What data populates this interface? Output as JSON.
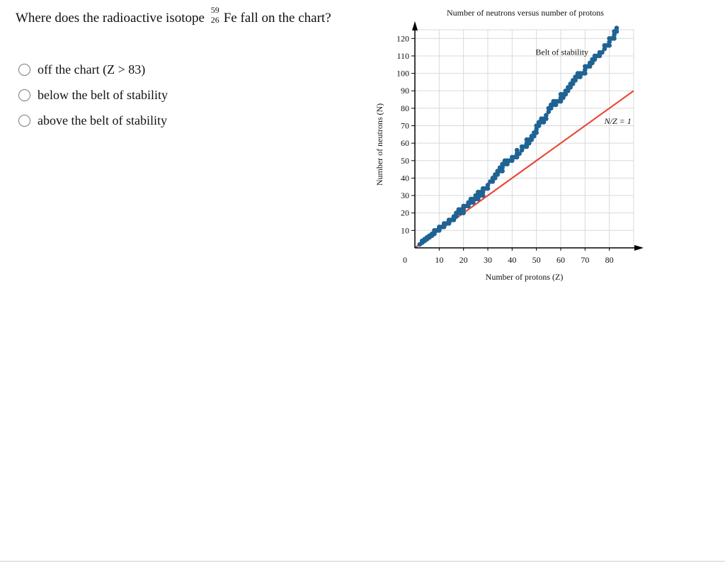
{
  "question": {
    "prefix": "Where does the radioactive isotope ",
    "isotope_mass": "59",
    "isotope_z": "26",
    "isotope_symbol": "Fe",
    "suffix": " fall on the chart?"
  },
  "options": [
    {
      "label": "off the chart (Z > 83)"
    },
    {
      "label": "below the belt of stability"
    },
    {
      "label": "above the belt of stability"
    }
  ],
  "colors": {
    "belt": "#1f6394",
    "ratio_line": "#e8483a",
    "grid": "#d9d9d9",
    "axis": "#000000"
  },
  "chart_data": {
    "type": "scatter",
    "title": "Number of neutrons versus number of protons",
    "xlabel": "Number of protons (Z)",
    "ylabel": "Number of neutrons (N)",
    "xlim": [
      0,
      90
    ],
    "ylim": [
      0,
      125
    ],
    "xticks": [
      10,
      20,
      30,
      40,
      50,
      60,
      70,
      80
    ],
    "yticks": [
      10,
      20,
      30,
      40,
      50,
      60,
      70,
      80,
      90,
      100,
      110,
      120
    ],
    "origin_label": "0",
    "grid": true,
    "annotations": [
      {
        "text": "Belt of stability"
      },
      {
        "text": "N/Z = 1"
      }
    ],
    "line": {
      "name": "N/Z = 1",
      "x": [
        0,
        90
      ],
      "y": [
        0,
        90
      ]
    },
    "belt_points": [
      [
        2,
        2
      ],
      [
        3,
        3
      ],
      [
        3,
        4
      ],
      [
        4,
        4
      ],
      [
        4,
        5
      ],
      [
        5,
        5
      ],
      [
        5,
        6
      ],
      [
        6,
        6
      ],
      [
        6,
        7
      ],
      [
        7,
        7
      ],
      [
        7,
        8
      ],
      [
        8,
        8
      ],
      [
        8,
        9
      ],
      [
        8,
        10
      ],
      [
        9,
        10
      ],
      [
        10,
        10
      ],
      [
        10,
        11
      ],
      [
        10,
        12
      ],
      [
        11,
        12
      ],
      [
        12,
        12
      ],
      [
        12,
        13
      ],
      [
        12,
        14
      ],
      [
        13,
        14
      ],
      [
        14,
        14
      ],
      [
        14,
        15
      ],
      [
        14,
        16
      ],
      [
        15,
        16
      ],
      [
        16,
        16
      ],
      [
        16,
        17
      ],
      [
        16,
        18
      ],
      [
        17,
        18
      ],
      [
        17,
        20
      ],
      [
        18,
        20
      ],
      [
        18,
        22
      ],
      [
        19,
        20
      ],
      [
        19,
        22
      ],
      [
        20,
        20
      ],
      [
        20,
        22
      ],
      [
        20,
        24
      ],
      [
        21,
        24
      ],
      [
        22,
        24
      ],
      [
        22,
        26
      ],
      [
        23,
        26
      ],
      [
        23,
        28
      ],
      [
        24,
        26
      ],
      [
        24,
        28
      ],
      [
        25,
        28
      ],
      [
        25,
        30
      ],
      [
        26,
        28
      ],
      [
        26,
        30
      ],
      [
        26,
        32
      ],
      [
        27,
        30
      ],
      [
        27,
        32
      ],
      [
        28,
        30
      ],
      [
        28,
        32
      ],
      [
        28,
        34
      ],
      [
        29,
        34
      ],
      [
        30,
        34
      ],
      [
        30,
        36
      ],
      [
        31,
        38
      ],
      [
        32,
        38
      ],
      [
        32,
        40
      ],
      [
        33,
        40
      ],
      [
        33,
        42
      ],
      [
        34,
        42
      ],
      [
        34,
        44
      ],
      [
        35,
        44
      ],
      [
        35,
        46
      ],
      [
        36,
        44
      ],
      [
        36,
        46
      ],
      [
        36,
        48
      ],
      [
        37,
        48
      ],
      [
        37,
        50
      ],
      [
        38,
        48
      ],
      [
        38,
        50
      ],
      [
        39,
        50
      ],
      [
        40,
        50
      ],
      [
        40,
        52
      ],
      [
        41,
        52
      ],
      [
        42,
        52
      ],
      [
        42,
        54
      ],
      [
        42,
        56
      ],
      [
        43,
        54
      ],
      [
        44,
        56
      ],
      [
        44,
        58
      ],
      [
        45,
        58
      ],
      [
        46,
        58
      ],
      [
        46,
        60
      ],
      [
        46,
        62
      ],
      [
        47,
        60
      ],
      [
        47,
        62
      ],
      [
        48,
        62
      ],
      [
        48,
        64
      ],
      [
        49,
        64
      ],
      [
        49,
        66
      ],
      [
        50,
        66
      ],
      [
        50,
        68
      ],
      [
        50,
        70
      ],
      [
        51,
        70
      ],
      [
        51,
        72
      ],
      [
        52,
        72
      ],
      [
        52,
        74
      ],
      [
        53,
        72
      ],
      [
        53,
        74
      ],
      [
        54,
        74
      ],
      [
        54,
        76
      ],
      [
        55,
        78
      ],
      [
        55,
        80
      ],
      [
        56,
        80
      ],
      [
        56,
        82
      ],
      [
        57,
        82
      ],
      [
        57,
        84
      ],
      [
        58,
        82
      ],
      [
        58,
        84
      ],
      [
        59,
        84
      ],
      [
        60,
        84
      ],
      [
        60,
        86
      ],
      [
        60,
        88
      ],
      [
        61,
        86
      ],
      [
        61,
        88
      ],
      [
        62,
        88
      ],
      [
        62,
        90
      ],
      [
        63,
        90
      ],
      [
        63,
        92
      ],
      [
        64,
        92
      ],
      [
        64,
        94
      ],
      [
        65,
        94
      ],
      [
        65,
        96
      ],
      [
        66,
        96
      ],
      [
        66,
        98
      ],
      [
        67,
        98
      ],
      [
        67,
        100
      ],
      [
        68,
        98
      ],
      [
        68,
        100
      ],
      [
        69,
        100
      ],
      [
        70,
        100
      ],
      [
        70,
        102
      ],
      [
        70,
        104
      ],
      [
        71,
        104
      ],
      [
        72,
        104
      ],
      [
        72,
        106
      ],
      [
        73,
        106
      ],
      [
        73,
        108
      ],
      [
        74,
        108
      ],
      [
        74,
        110
      ],
      [
        75,
        110
      ],
      [
        76,
        110
      ],
      [
        76,
        112
      ],
      [
        77,
        112
      ],
      [
        78,
        114
      ],
      [
        78,
        116
      ],
      [
        79,
        116
      ],
      [
        80,
        116
      ],
      [
        80,
        118
      ],
      [
        80,
        120
      ],
      [
        81,
        120
      ],
      [
        82,
        120
      ],
      [
        82,
        122
      ],
      [
        82,
        124
      ],
      [
        83,
        124
      ],
      [
        83,
        126
      ]
    ]
  }
}
